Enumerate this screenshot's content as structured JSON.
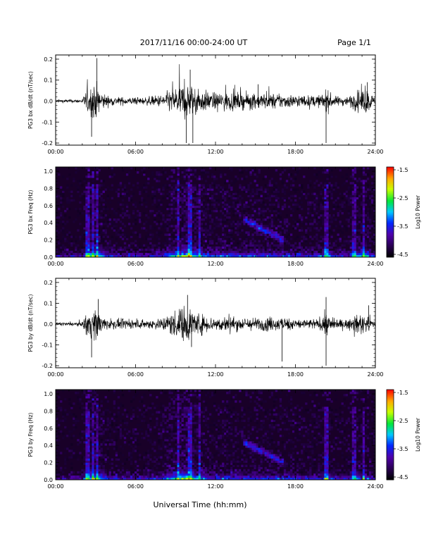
{
  "header": {
    "title": "2017/11/16  00:00-24:00 UT",
    "page": "Page 1/1"
  },
  "xlabel": "Universal Time (hh:mm)",
  "colorbar": {
    "label": "Log10 Power",
    "ticks": [
      "-1.5",
      "-2.5",
      "-3.5",
      "-4.5"
    ]
  },
  "chart_data": [
    {
      "type": "line",
      "id": "bx",
      "ylabel": "PG3 bx dB/dt (nT/sec)",
      "xticks": [
        "00:00",
        "06:00",
        "12:00",
        "18:00",
        "24:00"
      ],
      "yticks": [
        "0.2",
        "0.1",
        "0.0",
        "-0.1",
        "-0.2"
      ],
      "xlim": [
        0,
        24
      ],
      "ylim": [
        -0.21,
        0.22
      ],
      "envelope": {
        "hours": [
          0,
          2,
          2.3,
          2.6,
          3.0,
          3.4,
          4,
          5,
          6.5,
          8,
          8.8,
          9.3,
          9.8,
          10.2,
          10.6,
          11,
          11.5,
          12,
          12.5,
          13,
          14,
          15,
          16,
          17,
          18,
          19,
          20,
          20.3,
          20.6,
          21,
          22,
          22.5,
          23,
          23.5,
          24
        ],
        "amplitude": [
          0.01,
          0.012,
          0.07,
          0.09,
          0.12,
          0.06,
          0.03,
          0.025,
          0.022,
          0.04,
          0.08,
          0.1,
          0.12,
          0.1,
          0.08,
          0.07,
          0.06,
          0.05,
          0.06,
          0.06,
          0.05,
          0.05,
          0.05,
          0.045,
          0.04,
          0.035,
          0.04,
          0.08,
          0.05,
          0.03,
          0.03,
          0.06,
          0.08,
          0.07,
          0.015
        ]
      },
      "spikes": [
        [
          3.1,
          0.205
        ],
        [
          2.7,
          -0.17
        ],
        [
          9.8,
          -0.2
        ],
        [
          10.1,
          0.15
        ],
        [
          10.3,
          -0.2
        ],
        [
          15.2,
          0.08
        ],
        [
          20.3,
          -0.2
        ],
        [
          23.4,
          0.09
        ]
      ]
    },
    {
      "type": "heatmap",
      "id": "bx-freq",
      "ylabel": "PG3 bx Freq (Hz)",
      "xticks": [
        "00:00",
        "06:00",
        "12:00",
        "18:00",
        "24:00"
      ],
      "yticks": [
        "1.0",
        "0.8",
        "0.6",
        "0.4",
        "0.2",
        "0.0"
      ],
      "xlim": [
        0,
        24
      ],
      "ylim": [
        0,
        1.05
      ],
      "zlim": [
        -4.5,
        -1.5
      ]
    },
    {
      "type": "line",
      "id": "by",
      "ylabel": "PG3 by dB/dt (nT/sec)",
      "xticks": [
        "00:00",
        "06:00",
        "12:00",
        "18:00",
        "24:00"
      ],
      "yticks": [
        "0.2",
        "0.1",
        "0.0",
        "-0.1",
        "-0.2"
      ],
      "xlim": [
        0,
        24
      ],
      "ylim": [
        -0.21,
        0.22
      ],
      "envelope": {
        "hours": [
          0,
          2,
          2.3,
          2.6,
          3.0,
          3.4,
          4,
          5,
          6.5,
          8,
          8.8,
          9.3,
          9.8,
          10.2,
          10.6,
          11,
          11.5,
          12,
          12.5,
          13,
          14,
          15,
          16,
          17,
          18,
          19,
          20,
          20.3,
          20.6,
          21,
          22,
          22.5,
          23,
          23.5,
          24
        ],
        "amplitude": [
          0.01,
          0.012,
          0.08,
          0.09,
          0.1,
          0.06,
          0.03,
          0.03,
          0.025,
          0.04,
          0.08,
          0.1,
          0.12,
          0.1,
          0.08,
          0.06,
          0.05,
          0.04,
          0.05,
          0.05,
          0.04,
          0.04,
          0.045,
          0.04,
          0.035,
          0.03,
          0.04,
          0.08,
          0.05,
          0.03,
          0.03,
          0.05,
          0.06,
          0.05,
          0.015
        ]
      },
      "spikes": [
        [
          2.7,
          -0.16
        ],
        [
          3.2,
          0.12
        ],
        [
          9.9,
          0.14
        ],
        [
          10.2,
          -0.11
        ],
        [
          17.0,
          -0.18
        ],
        [
          20.3,
          -0.2
        ],
        [
          20.3,
          0.13
        ],
        [
          23.5,
          0.09
        ]
      ]
    },
    {
      "type": "heatmap",
      "id": "by-freq",
      "ylabel": "PG3 by Freq (Hz)",
      "xticks": [
        "00:00",
        "06:00",
        "12:00",
        "18:00",
        "24:00"
      ],
      "yticks": [
        "1.0",
        "0.8",
        "0.6",
        "0.4",
        "0.2",
        "0.0"
      ],
      "xlim": [
        0,
        24
      ],
      "ylim": [
        0,
        1.05
      ],
      "zlim": [
        -4.5,
        -1.5
      ]
    }
  ]
}
